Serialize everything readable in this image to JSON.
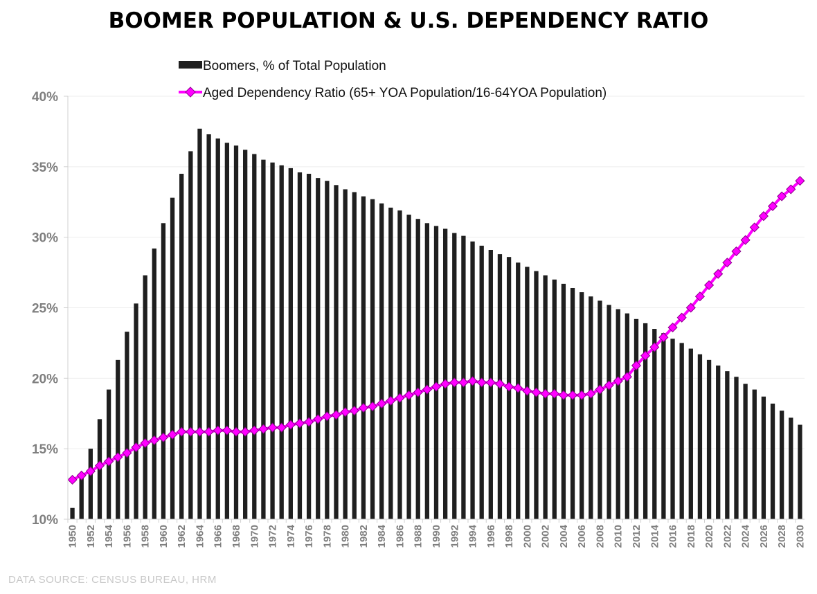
{
  "chart_data": {
    "type": "bar+line",
    "title": "BOOMER POPULATION & U.S. DEPENDENCY RATIO",
    "source": "DATA SOURCE:  CENSUS  BUREAU,  HRM",
    "ylim": [
      10,
      40
    ],
    "yticks": [
      "10%",
      "15%",
      "20%",
      "25%",
      "30%",
      "35%",
      "40%"
    ],
    "ytick_values": [
      10,
      15,
      20,
      25,
      30,
      35,
      40
    ],
    "xlim": [
      1950,
      2030
    ],
    "x_tick_every": 2,
    "legend_position": "top-center",
    "colors": {
      "bars": "#1f1f1f",
      "line": "#ff00ff",
      "marker_edge": "#8a008a",
      "grid": "#eeeeee"
    },
    "series": [
      {
        "name": "Boomers, % of Total Population",
        "kind": "bar",
        "values": [
          10.8,
          12.9,
          15.0,
          17.1,
          19.2,
          21.3,
          23.3,
          25.3,
          27.3,
          29.2,
          31.0,
          32.8,
          34.5,
          36.1,
          37.7,
          37.3,
          37.0,
          36.7,
          36.5,
          36.2,
          35.9,
          35.5,
          35.3,
          35.1,
          34.9,
          34.6,
          34.5,
          34.2,
          34.0,
          33.7,
          33.4,
          33.2,
          32.9,
          32.7,
          32.4,
          32.1,
          31.9,
          31.6,
          31.3,
          31.0,
          30.8,
          30.6,
          30.3,
          30.1,
          29.7,
          29.4,
          29.1,
          28.8,
          28.6,
          28.2,
          27.9,
          27.6,
          27.3,
          27.0,
          26.7,
          26.4,
          26.1,
          25.8,
          25.5,
          25.2,
          24.9,
          24.6,
          24.2,
          23.9,
          23.5,
          23.2,
          22.8,
          22.5,
          22.1,
          21.7,
          21.3,
          20.9,
          20.5,
          20.1,
          19.6,
          19.2,
          18.7,
          18.2,
          17.7,
          17.2,
          16.7
        ]
      },
      {
        "name": "Aged Dependency Ratio (65+ YOA Population/16-64YOA Population)",
        "kind": "line",
        "values": [
          12.8,
          13.1,
          13.4,
          13.8,
          14.1,
          14.4,
          14.7,
          15.1,
          15.4,
          15.6,
          15.8,
          16.0,
          16.2,
          16.2,
          16.2,
          16.2,
          16.3,
          16.3,
          16.2,
          16.2,
          16.3,
          16.4,
          16.5,
          16.5,
          16.7,
          16.8,
          16.9,
          17.1,
          17.3,
          17.4,
          17.6,
          17.7,
          17.9,
          18.0,
          18.2,
          18.4,
          18.6,
          18.8,
          19.0,
          19.2,
          19.4,
          19.6,
          19.7,
          19.7,
          19.8,
          19.7,
          19.7,
          19.6,
          19.4,
          19.3,
          19.1,
          19.0,
          18.9,
          18.9,
          18.8,
          18.8,
          18.8,
          18.9,
          19.2,
          19.5,
          19.8,
          20.1,
          20.9,
          21.6,
          22.2,
          22.9,
          23.6,
          24.3,
          25.0,
          25.8,
          26.6,
          27.4,
          28.2,
          29.0,
          29.8,
          30.7,
          31.5,
          32.2,
          32.9,
          33.4,
          34.0
        ]
      }
    ]
  }
}
